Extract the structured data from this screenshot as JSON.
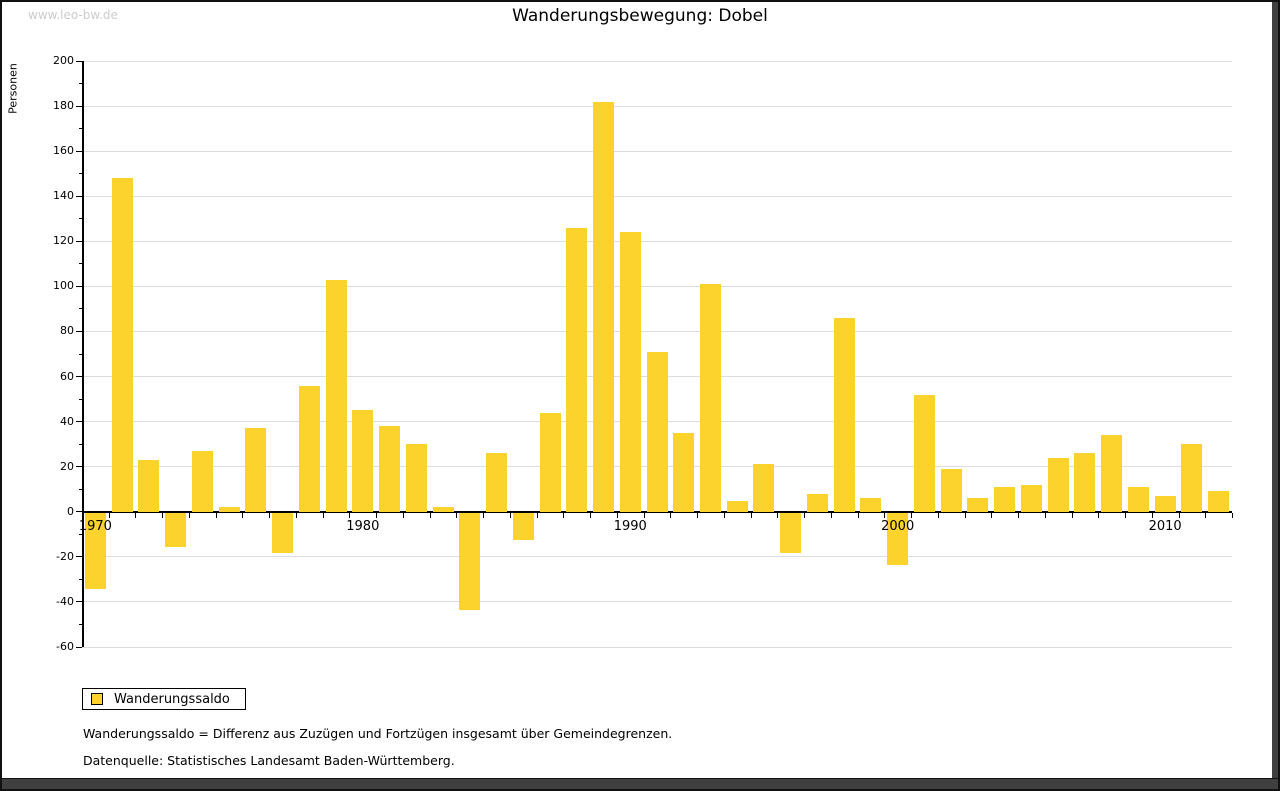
{
  "watermark": "www.leo-bw.de",
  "title": "Wanderungsbewegung: Dobel",
  "y_axis_label": "Personen",
  "legend": {
    "label": "Wanderungssaldo"
  },
  "footnotes": [
    "Wanderungssaldo = Differenz aus Zuzügen und Fortzügen insgesamt über Gemeindegrenzen.",
    "Datenquelle: Statistisches Landesamt Baden-Württemberg."
  ],
  "colors": {
    "bar": "#FCD22D",
    "grid": "#dddddd",
    "axis": "#000000",
    "watermark": "#cccccc",
    "frame": "#3f3f3f"
  },
  "chart_data": {
    "type": "bar",
    "title": "Wanderungsbewegung: Dobel",
    "xlabel": "",
    "ylabel": "Personen",
    "series_name": "Wanderungssaldo",
    "categories": [
      1970,
      1971,
      1972,
      1973,
      1974,
      1975,
      1976,
      1977,
      1978,
      1979,
      1980,
      1981,
      1982,
      1983,
      1984,
      1985,
      1986,
      1987,
      1988,
      1989,
      1990,
      1991,
      1992,
      1993,
      1994,
      1995,
      1996,
      1997,
      1998,
      1999,
      2000,
      2001,
      2002,
      2003,
      2004,
      2005,
      2006,
      2007,
      2008,
      2009,
      2010,
      2011,
      2012
    ],
    "values": [
      -34,
      148,
      23,
      -15,
      27,
      2,
      37,
      -18,
      56,
      103,
      45,
      38,
      30,
      2,
      -43,
      26,
      -12,
      44,
      126,
      182,
      124,
      71,
      35,
      101,
      5,
      21,
      -18,
      8,
      86,
      6,
      -23,
      52,
      19,
      6,
      11,
      12,
      24,
      26,
      34,
      11,
      7,
      30,
      9
    ],
    "ylim": [
      -60,
      200
    ],
    "ytick_step": 20,
    "ytick_minor_step": 10,
    "xtick_labels": [
      1970,
      1980,
      1990,
      2000,
      2010
    ],
    "grid": true,
    "legend_position": "bottom-left"
  }
}
